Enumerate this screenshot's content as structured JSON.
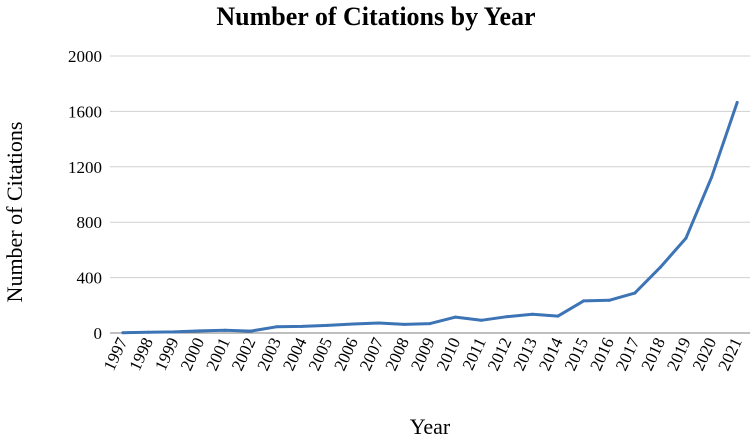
{
  "chart_data": {
    "type": "line",
    "title": "Number of Citations by Year",
    "xlabel": "Year",
    "ylabel": "Number of Citations",
    "ylim": [
      0,
      2000
    ],
    "yticks": [
      0,
      400,
      800,
      1200,
      1600,
      2000
    ],
    "grid": true,
    "legend": "none",
    "colors": {
      "line": "#3d74b6",
      "grid": "#d0d0d0",
      "axis": "#7f7f7f"
    },
    "categories": [
      "1997",
      "1998",
      "1999",
      "2000",
      "2001",
      "2002",
      "2003",
      "2004",
      "2005",
      "2006",
      "2007",
      "2008",
      "2009",
      "2010",
      "2011",
      "2012",
      "2013",
      "2014",
      "2015",
      "2016",
      "2017",
      "2018",
      "2019",
      "2020",
      "2021"
    ],
    "series": [
      {
        "values": [
          2,
          5,
          8,
          15,
          20,
          14,
          45,
          48,
          55,
          65,
          72,
          62,
          68,
          115,
          92,
          118,
          135,
          122,
          232,
          236,
          288,
          475,
          685,
          1125,
          1665
        ]
      }
    ]
  }
}
